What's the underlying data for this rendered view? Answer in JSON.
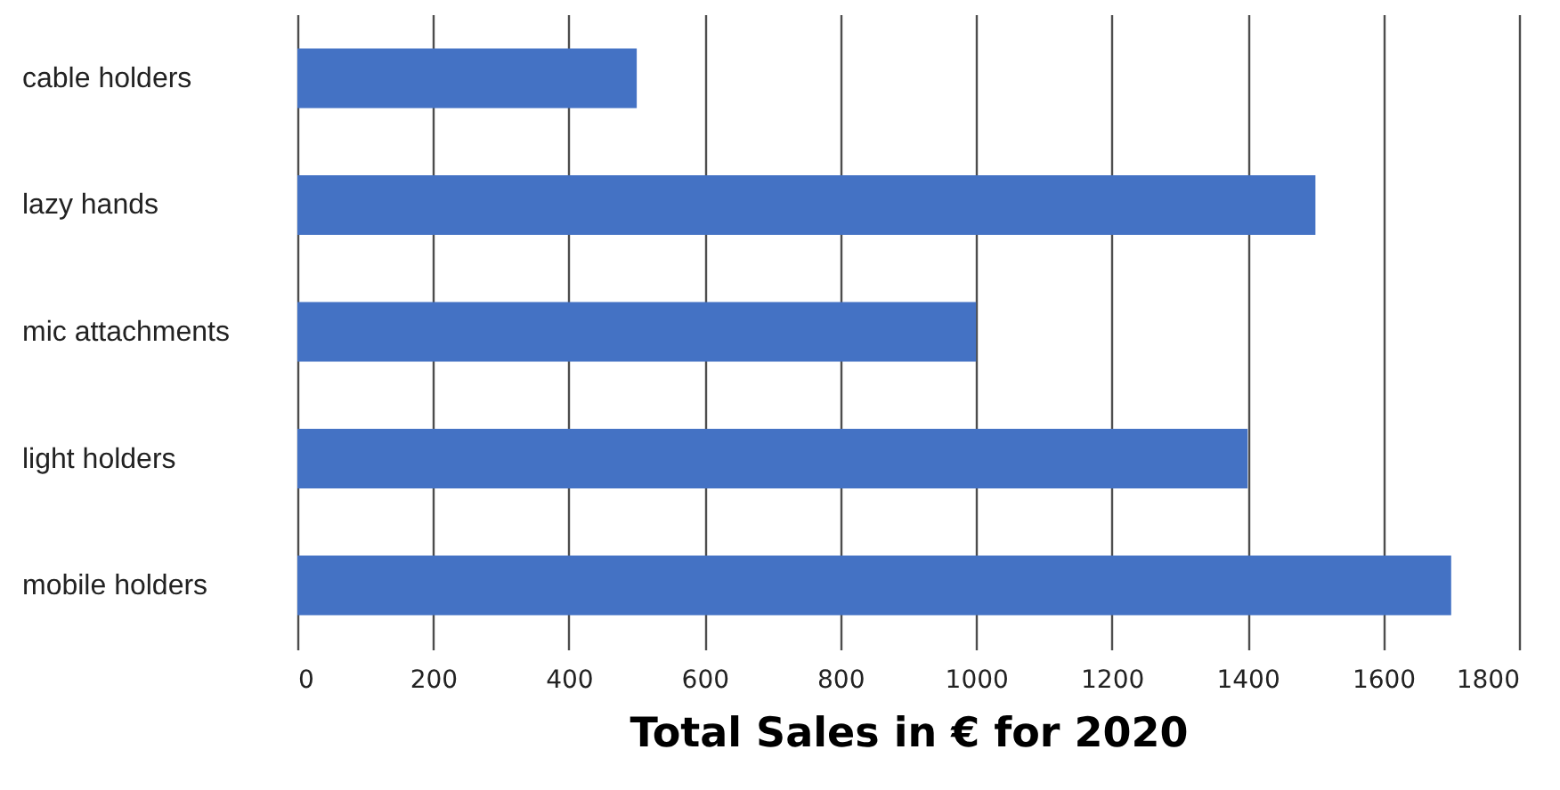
{
  "chart_data": {
    "type": "bar",
    "orientation": "horizontal",
    "xlabel": "Total Sales in € for 2020",
    "categories": [
      "cable holders",
      "lazy hands",
      "mic attachments",
      "light holders",
      "mobile holders"
    ],
    "values": [
      500,
      1500,
      1000,
      1400,
      1700
    ],
    "color": "#4472c4",
    "xlim": [
      0,
      1800
    ],
    "xticks": [
      0,
      200,
      400,
      600,
      800,
      1000,
      1200,
      1400,
      1600,
      1800
    ],
    "grid": "x"
  }
}
